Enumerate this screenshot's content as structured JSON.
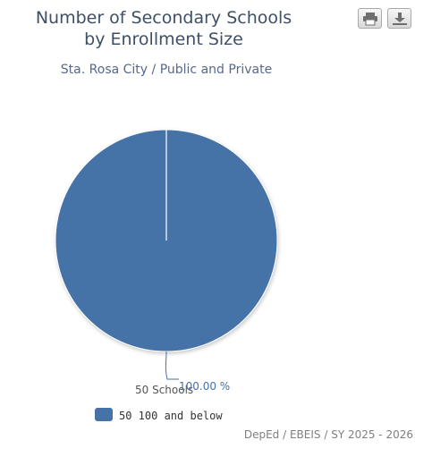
{
  "chart_data": {
    "type": "pie",
    "title": [
      "Number of Secondary Schools",
      "by Enrollment Size"
    ],
    "subtitle": "Sta. Rosa City / Public and Private",
    "slices": [
      {
        "label": "50 100 and below",
        "value": 50,
        "value_label": "50 Schools",
        "percent_label": "100.00 %",
        "color": "#4572a7"
      }
    ],
    "legend": {
      "placement": "bottom-left"
    },
    "credits": "DepEd / EBEIS / SY 2025 - 2026"
  },
  "toolbar": {
    "print_icon": "printer-icon",
    "download_icon": "download-icon"
  }
}
